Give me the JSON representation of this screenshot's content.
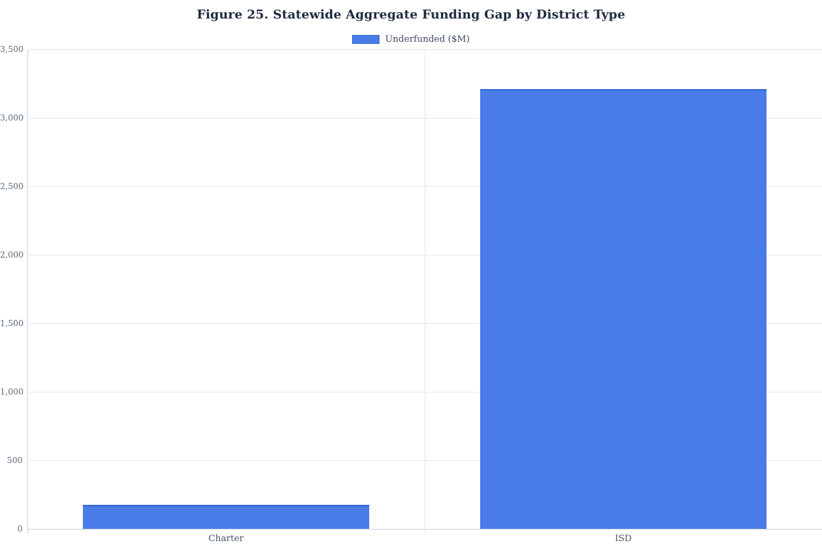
{
  "title": "Figure 25. Statewide Aggregate Funding Gap by District Type",
  "legend": {
    "items": [
      {
        "label": "Underfunded ($M)",
        "color": "#4a7ce8"
      }
    ]
  },
  "colors": {
    "bar_fill": "#4a7ce8",
    "bar_stroke": "#3566d4",
    "gridline": "#e0e9f1",
    "axis_line": "#c8ced8",
    "title_text": "#1f2a40",
    "tick_text": "#5c6878"
  },
  "chart_data": {
    "type": "bar",
    "categories": [
      "Charter",
      "ISD"
    ],
    "series": [
      {
        "name": "Underfunded ($M)",
        "values": [
          173,
          3210
        ]
      }
    ],
    "title": "Figure 25. Statewide Aggregate Funding Gap by District Type",
    "xlabel": "",
    "ylabel": "",
    "ylim": [
      0,
      3500
    ],
    "ytick_step": 500,
    "ytick_labels": [
      "0",
      "500",
      "1,000",
      "1,500",
      "2,000",
      "2,500",
      "3,000",
      "3,500"
    ],
    "grid": true,
    "legend_position": "top",
    "bar_width_fraction": 0.72
  }
}
